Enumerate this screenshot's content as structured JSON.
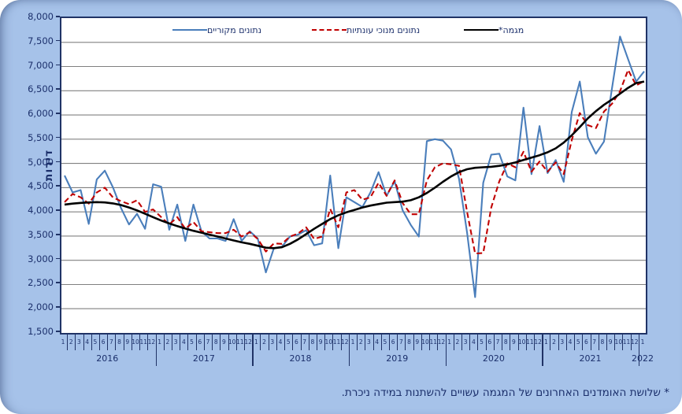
{
  "colors": {
    "panel_background": "#a6c2e9",
    "plot_background": "#ffffff",
    "frame_navy": "#203366",
    "text_navy": "#1b2f6b",
    "gridline_gray": "#808080",
    "series_original_blue": "#4a7ebb",
    "series_seasonal_red": "#c00000",
    "series_trend_black": "#000000"
  },
  "y_axis": {
    "title": "דירות",
    "tick_labels": [
      "8,000",
      "7,500",
      "7,000",
      "6,500",
      "6,000",
      "5,500",
      "5,000",
      "4,500",
      "4,000",
      "3,500",
      "3,000",
      "2,500",
      "2,000",
      "1,500"
    ]
  },
  "footnote": "* שלושת האומדנים האחרונים של המגמה עשויים להשתנות במידה ניכרת.",
  "chart_data": {
    "type": "line",
    "ylabel": "דירות",
    "ylim": [
      1500,
      8000
    ],
    "ytick_step": 500,
    "grid": true,
    "legend_position": "top-inside",
    "month_numbers": [
      1,
      2,
      3,
      4,
      5,
      6,
      7,
      8,
      9,
      10,
      11,
      12
    ],
    "years": [
      {
        "label": "2016",
        "months": 12
      },
      {
        "label": "2017",
        "months": 12
      },
      {
        "label": "2018",
        "months": 12
      },
      {
        "label": "2019",
        "months": 12
      },
      {
        "label": "2020",
        "months": 12
      },
      {
        "label": "2021",
        "months": 12
      },
      {
        "label": "2022",
        "months": 1
      }
    ],
    "series": [
      {
        "name": "נתונים מקוריים",
        "color": "#4a7ebb",
        "style": "solid",
        "values": [
          4750,
          4400,
          4450,
          3750,
          4670,
          4850,
          4510,
          4080,
          3740,
          3960,
          3650,
          4570,
          4520,
          3630,
          4150,
          3400,
          4150,
          3600,
          3450,
          3450,
          3400,
          3850,
          3400,
          3600,
          3450,
          2750,
          3250,
          3280,
          3490,
          3530,
          3620,
          3310,
          3350,
          4750,
          3250,
          4300,
          4200,
          4100,
          4400,
          4820,
          4330,
          4630,
          4030,
          3730,
          3490,
          5460,
          5500,
          5470,
          5290,
          4680,
          3570,
          2240,
          4600,
          5180,
          5200,
          4730,
          4650,
          6150,
          4780,
          5770,
          4800,
          5070,
          4620,
          6060,
          6690,
          5540,
          5200,
          5450,
          6550,
          7620,
          7150,
          6690,
          6900
        ]
      },
      {
        "name": "נתונים מנוכי עונתיות",
        "color": "#c00000",
        "style": "dashed",
        "values": [
          4200,
          4370,
          4300,
          4170,
          4400,
          4500,
          4300,
          4220,
          4160,
          4240,
          4000,
          4050,
          3890,
          3740,
          3890,
          3650,
          3790,
          3600,
          3580,
          3560,
          3560,
          3630,
          3490,
          3580,
          3440,
          3180,
          3350,
          3340,
          3490,
          3550,
          3680,
          3440,
          3490,
          4060,
          3680,
          4400,
          4450,
          4250,
          4300,
          4600,
          4330,
          4650,
          4180,
          3950,
          3950,
          4650,
          4920,
          5000,
          4980,
          4950,
          4000,
          3140,
          3150,
          4090,
          4630,
          5000,
          4920,
          5240,
          4830,
          5040,
          4830,
          5020,
          4780,
          5480,
          6040,
          5790,
          5730,
          6070,
          6230,
          6490,
          6930,
          6610,
          6700
        ]
      },
      {
        "name": "מגמה*",
        "color": "#000000",
        "style": "solid",
        "values": [
          4150,
          4170,
          4185,
          4195,
          4200,
          4195,
          4175,
          4140,
          4090,
          4030,
          3960,
          3890,
          3820,
          3760,
          3705,
          3655,
          3610,
          3570,
          3530,
          3490,
          3450,
          3410,
          3370,
          3340,
          3300,
          3260,
          3250,
          3270,
          3340,
          3430,
          3540,
          3650,
          3750,
          3850,
          3930,
          3990,
          4040,
          4090,
          4130,
          4160,
          4190,
          4200,
          4210,
          4240,
          4300,
          4390,
          4500,
          4620,
          4730,
          4820,
          4880,
          4910,
          4920,
          4930,
          4950,
          4980,
          5020,
          5070,
          5120,
          5170,
          5230,
          5310,
          5430,
          5580,
          5750,
          5930,
          6080,
          6210,
          6320,
          6440,
          6560,
          6660,
          6690
        ]
      }
    ]
  }
}
